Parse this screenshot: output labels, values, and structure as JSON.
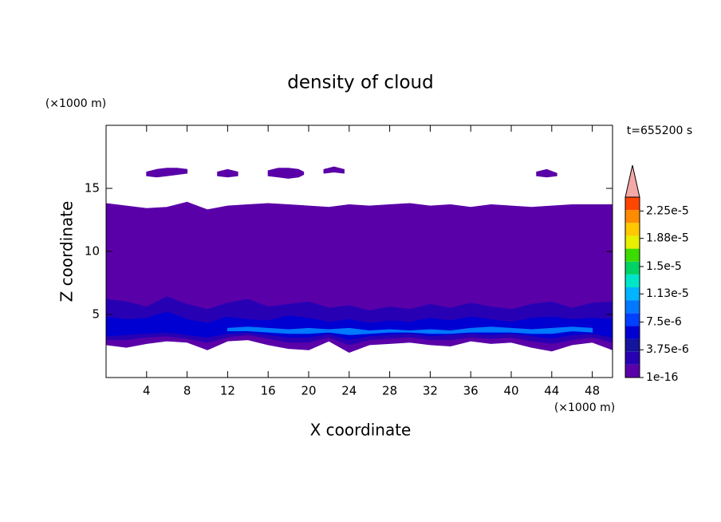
{
  "chart_data": {
    "type": "contour",
    "title": "density of cloud",
    "xlabel": "X coordinate",
    "ylabel": "Z coordinate",
    "x_unit": "(×1000 m)",
    "y_unit": "(×1000 m)",
    "annotation": "t=655200 s",
    "xlim": [
      0,
      50
    ],
    "ylim": [
      0,
      20
    ],
    "xticks": [
      4,
      8,
      12,
      16,
      20,
      24,
      28,
      32,
      36,
      40,
      44,
      48
    ],
    "yticks": [
      5,
      10,
      15
    ],
    "colorbar": {
      "clim": [
        1e-16,
        2.4375e-05
      ],
      "colors": [
        "#5a00a8",
        "#2800b4",
        "#14149c",
        "#0000d2",
        "#0040ff",
        "#0078ff",
        "#00b4ff",
        "#00e6c8",
        "#00d264",
        "#3cdc00",
        "#e6f000",
        "#ffc800",
        "#ff8c00",
        "#ff4600"
      ],
      "extend_color": "#f4a8a8",
      "ticks": [
        {
          "value": 1e-16,
          "label": "1e-16"
        },
        {
          "value": 3.75e-06,
          "label": "3.75e-6"
        },
        {
          "value": 7.5e-06,
          "label": "7.5e-6"
        },
        {
          "value": 1.13e-05,
          "label": "1.13e-5"
        },
        {
          "value": 1.5e-05,
          "label": "1.5e-5"
        },
        {
          "value": 1.88e-05,
          "label": "1.88e-5"
        },
        {
          "value": 2.25e-05,
          "label": "2.25e-5"
        }
      ]
    },
    "layers": [
      {
        "level": 1e-16,
        "x": [
          0,
          2,
          4,
          6,
          8,
          10,
          12,
          14,
          16,
          18,
          20,
          22,
          24,
          26,
          28,
          30,
          32,
          34,
          36,
          38,
          40,
          42,
          44,
          46,
          48,
          50
        ],
        "top": [
          13.8,
          13.6,
          13.4,
          13.5,
          13.9,
          13.3,
          13.6,
          13.7,
          13.8,
          13.7,
          13.6,
          13.5,
          13.7,
          13.6,
          13.7,
          13.8,
          13.6,
          13.7,
          13.5,
          13.7,
          13.6,
          13.5,
          13.6,
          13.7,
          13.7,
          13.7
        ],
        "bottom": [
          2.6,
          2.4,
          2.7,
          2.9,
          2.8,
          2.2,
          2.9,
          3.0,
          2.6,
          2.3,
          2.2,
          2.9,
          2.0,
          2.6,
          2.7,
          2.8,
          2.6,
          2.5,
          2.9,
          2.7,
          2.8,
          2.4,
          2.1,
          2.6,
          2.8,
          2.2
        ]
      },
      {
        "level": 1.875e-06,
        "x": [
          0,
          2,
          4,
          6,
          8,
          10,
          12,
          14,
          16,
          18,
          20,
          22,
          24,
          26,
          28,
          30,
          32,
          34,
          36,
          38,
          40,
          42,
          44,
          46,
          48,
          50
        ],
        "top": [
          6.2,
          6.0,
          5.6,
          6.4,
          5.8,
          5.4,
          5.9,
          6.2,
          5.6,
          5.8,
          6.0,
          5.5,
          5.7,
          5.3,
          5.6,
          5.4,
          5.8,
          5.5,
          5.9,
          5.6,
          5.4,
          5.8,
          6.0,
          5.5,
          5.9,
          6.0
        ],
        "bottom": [
          3.0,
          3.0,
          3.2,
          3.3,
          3.1,
          2.8,
          3.2,
          3.4,
          3.1,
          2.8,
          2.8,
          3.2,
          2.6,
          3.0,
          3.1,
          3.2,
          3.0,
          3.0,
          3.2,
          3.1,
          3.2,
          2.9,
          2.7,
          3.0,
          3.2,
          2.8
        ]
      },
      {
        "level": 5.625e-06,
        "x": [
          0,
          2,
          4,
          6,
          8,
          10,
          12,
          14,
          16,
          18,
          20,
          22,
          24,
          26,
          28,
          30,
          32,
          34,
          36,
          38,
          40,
          42,
          44,
          46,
          48,
          50
        ],
        "top": [
          4.8,
          4.6,
          4.7,
          5.2,
          4.6,
          4.3,
          4.8,
          4.6,
          4.5,
          4.9,
          4.7,
          4.4,
          4.6,
          4.3,
          4.5,
          4.4,
          4.7,
          4.5,
          4.8,
          4.6,
          4.4,
          4.7,
          4.8,
          4.6,
          4.7,
          4.6
        ],
        "bottom": [
          3.3,
          3.4,
          3.5,
          3.6,
          3.4,
          3.2,
          3.5,
          3.6,
          3.4,
          3.2,
          3.2,
          3.5,
          3.0,
          3.3,
          3.4,
          3.5,
          3.3,
          3.4,
          3.5,
          3.4,
          3.5,
          3.3,
          3.1,
          3.4,
          3.5,
          3.2
        ]
      },
      {
        "level": 9.375e-06,
        "x": [
          12,
          14,
          16,
          18,
          20,
          22,
          24,
          26,
          28,
          30,
          32,
          34,
          36,
          38,
          40,
          42,
          44,
          46,
          48
        ],
        "top": [
          3.9,
          4.0,
          3.9,
          3.8,
          3.9,
          3.8,
          3.9,
          3.7,
          3.8,
          3.7,
          3.8,
          3.7,
          3.9,
          4.0,
          3.9,
          3.8,
          3.9,
          4.0,
          3.9
        ],
        "bottom": [
          3.7,
          3.7,
          3.6,
          3.5,
          3.5,
          3.6,
          3.4,
          3.5,
          3.6,
          3.6,
          3.5,
          3.5,
          3.6,
          3.6,
          3.6,
          3.5,
          3.5,
          3.7,
          3.6
        ]
      },
      {
        "level": 1e-16,
        "x": [
          4,
          5,
          6,
          7,
          8
        ],
        "top": [
          16.3,
          16.5,
          16.6,
          16.6,
          16.5
        ],
        "bottom": [
          16.0,
          15.9,
          16.0,
          16.1,
          16.2
        ]
      },
      {
        "level": 1e-16,
        "x": [
          11,
          12,
          13
        ],
        "top": [
          16.3,
          16.5,
          16.3
        ],
        "bottom": [
          16.0,
          15.9,
          16.0
        ]
      },
      {
        "level": 1e-16,
        "x": [
          16,
          17,
          18,
          19,
          19.5
        ],
        "top": [
          16.4,
          16.6,
          16.6,
          16.5,
          16.3
        ],
        "bottom": [
          16.0,
          15.9,
          15.8,
          15.9,
          16.1
        ]
      },
      {
        "level": 1e-16,
        "x": [
          21.5,
          22.5,
          23.5
        ],
        "top": [
          16.5,
          16.7,
          16.5
        ],
        "bottom": [
          16.2,
          16.3,
          16.2
        ]
      },
      {
        "level": 1e-16,
        "x": [
          42.5,
          43.5,
          44.5
        ],
        "top": [
          16.3,
          16.5,
          16.2
        ],
        "bottom": [
          16.0,
          15.9,
          16.0
        ]
      }
    ]
  }
}
